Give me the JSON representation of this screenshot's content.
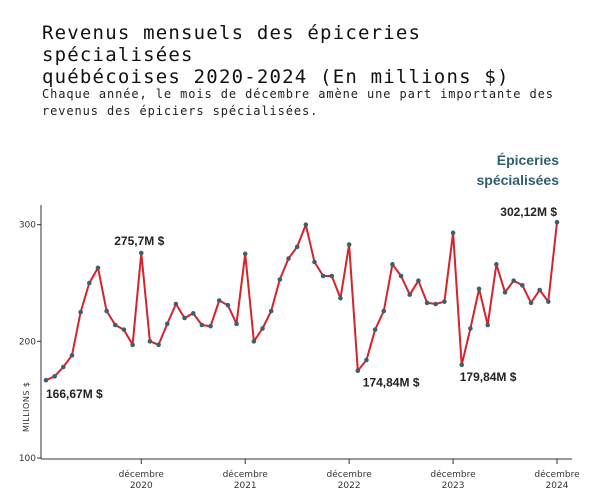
{
  "title": "Revenus mensuels des épiceries spécialisées\nquébécoises 2020-2024 (En millions $)",
  "subtitle": "Chaque année, le mois de décembre amène une part importante des revenus des épiciers spécialisées.",
  "colors": {
    "line": "#d7222a",
    "marker": "#3f5f6b",
    "series_label": "#2f5e73",
    "axis": "#333333"
  },
  "chart_data": {
    "type": "line",
    "ylabel": "MILLIONS $",
    "ylim": [
      100,
      310
    ],
    "yticks": [
      100,
      200,
      300
    ],
    "xticks": [
      {
        "index": 11,
        "line1": "décembre",
        "line2": "2020"
      },
      {
        "index": 23,
        "line1": "décembre",
        "line2": "2021"
      },
      {
        "index": 35,
        "line1": "décembre",
        "line2": "2022"
      },
      {
        "index": 47,
        "line1": "décembre",
        "line2": "2023"
      },
      {
        "index": 59,
        "line1": "décembre",
        "line2": "2024"
      }
    ],
    "series": [
      {
        "name": "Épiceries spécialisées",
        "values": [
          166.67,
          170,
          178,
          188,
          225,
          250,
          263,
          226,
          214,
          210,
          197,
          275.7,
          200,
          197,
          215,
          232,
          220,
          224,
          214,
          213,
          235,
          231,
          215,
          275,
          200,
          211,
          226,
          253,
          271,
          281,
          300,
          268,
          256,
          256,
          237,
          283,
          174.84,
          184,
          210,
          226,
          266,
          256,
          240,
          252,
          233,
          232,
          234,
          293,
          179.84,
          211,
          245,
          214,
          266,
          242,
          252,
          248,
          233,
          244,
          234,
          302.12
        ]
      }
    ],
    "annotations": [
      {
        "index": 0,
        "text": "166,67M $"
      },
      {
        "index": 11,
        "text": "275,7M $"
      },
      {
        "index": 36,
        "text": "174,84M $"
      },
      {
        "index": 48,
        "text": "179,84M $"
      },
      {
        "index": 59,
        "text": "302,12M $"
      }
    ],
    "series_label": [
      "Épiceries",
      "spécialisées"
    ]
  }
}
